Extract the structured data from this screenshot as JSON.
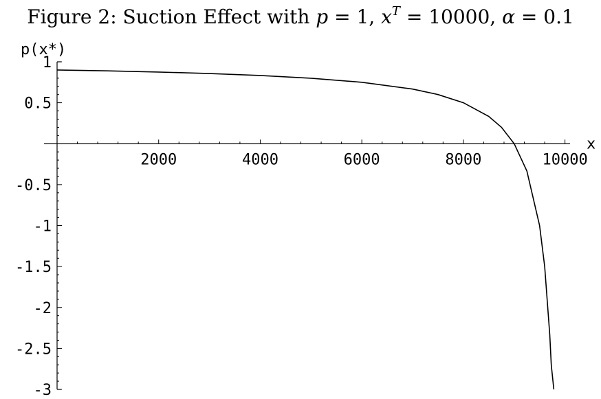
{
  "title": {
    "prefix": "Figure 2: Suction Effect with ",
    "p_symbol": "p",
    "p_value": " = 1, ",
    "x_symbol": "x",
    "x_superscript": "T",
    "x_value": " = 10000, ",
    "alpha_symbol": "α",
    "alpha_value": " = 0.1"
  },
  "chart_data": {
    "type": "line",
    "title": "Figure 2: Suction Effect with p = 1, x^T = 10000, α = 0.1",
    "xlabel": "x",
    "ylabel": "p(x*)",
    "xlim": [
      0,
      10100
    ],
    "ylim": [
      -3,
      1
    ],
    "x_ticks": [
      2000,
      4000,
      6000,
      8000,
      10000
    ],
    "x_tick_labels": [
      "2000",
      "4000",
      "6000",
      "8000",
      "10000"
    ],
    "y_ticks": [
      1,
      0.5,
      -0.5,
      -1,
      -1.5,
      -2,
      -2.5,
      -3
    ],
    "y_tick_labels": [
      "1",
      "0.5",
      "-0.5",
      "-1",
      "-1.5",
      "-2",
      "-2.5",
      "-3"
    ],
    "grid": false,
    "series": [
      {
        "x": [
          0,
          1000,
          2000,
          3000,
          4000,
          5000,
          6000,
          7000,
          7500,
          8000,
          8500,
          8750,
          9000,
          9250,
          9500,
          9600,
          9700,
          9730
        ],
        "y": [
          0.9,
          0.889,
          0.875,
          0.857,
          0.833,
          0.8,
          0.75,
          0.667,
          0.6,
          0.5,
          0.333,
          0.2,
          0,
          -0.333,
          -1,
          -1.5,
          -2.333,
          -2.704
        ]
      }
    ]
  }
}
